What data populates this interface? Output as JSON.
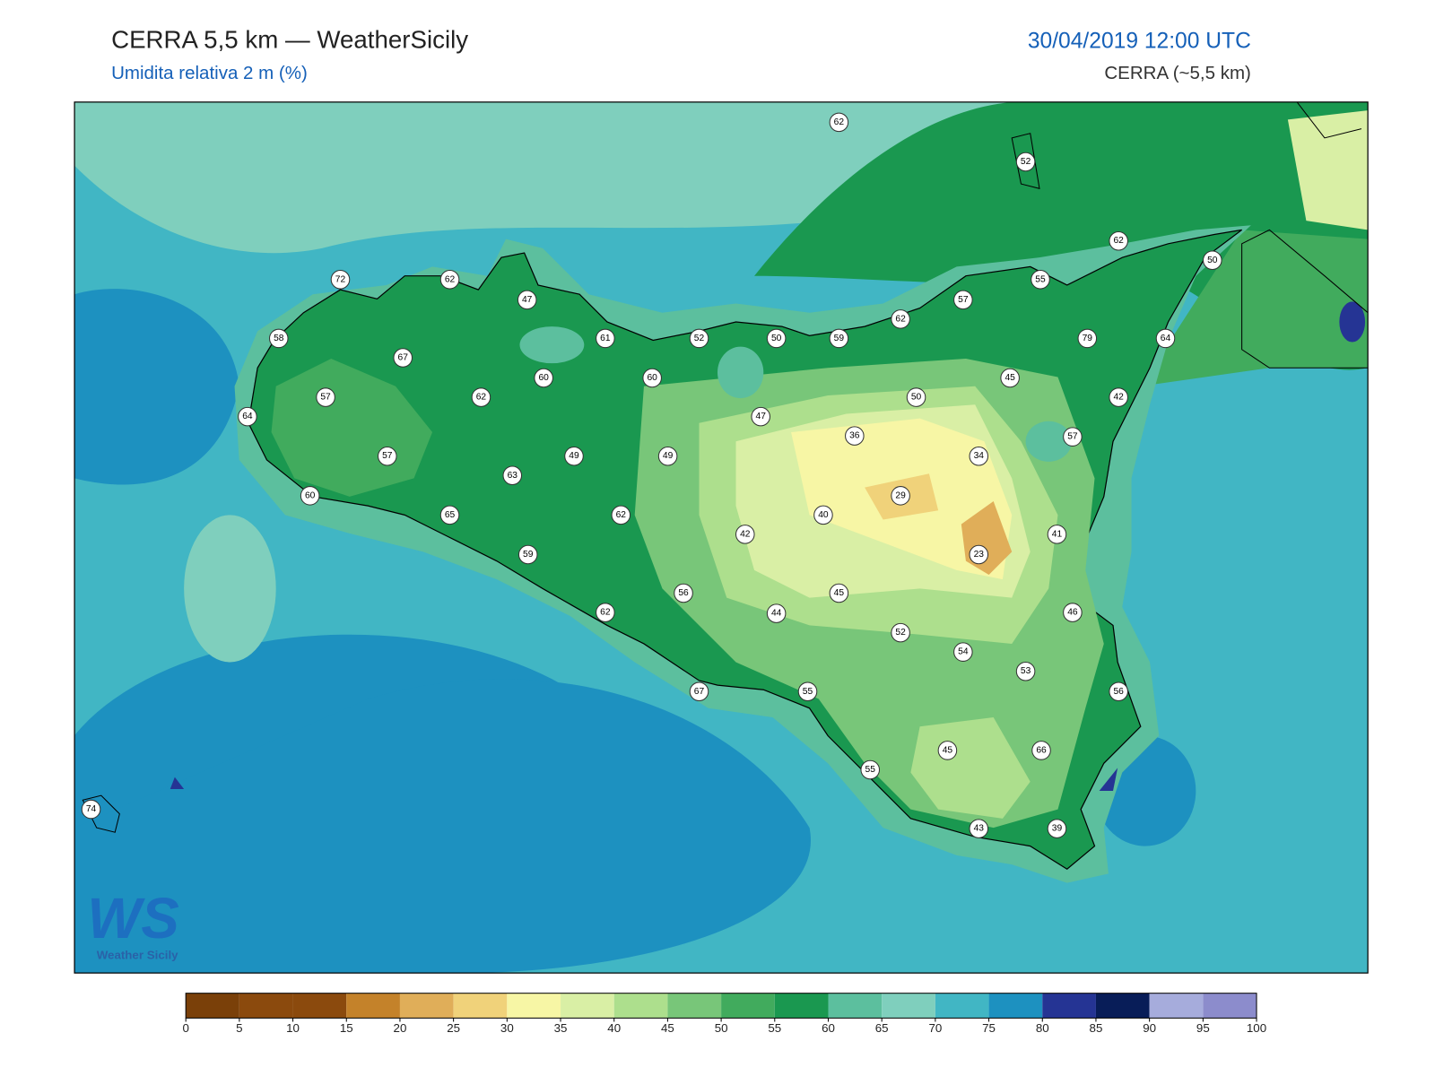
{
  "header": {
    "title": "CERRA 5,5 km — WeatherSicily",
    "subtitle": "Umidita relativa 2 m (%)",
    "date": "30/04/2019 12:00 UTC",
    "model": "CERRA (~5,5 km)"
  },
  "logo": {
    "mark": "WS",
    "text": "Weather Sicily"
  },
  "stations": [
    62,
    52,
    62,
    50,
    72,
    62,
    47,
    55,
    57,
    62,
    58,
    67,
    61,
    52,
    50,
    59,
    79,
    64,
    60,
    60,
    45,
    57,
    64,
    62,
    50,
    42,
    47,
    36,
    57,
    57,
    49,
    49,
    34,
    63,
    60,
    29,
    65,
    62,
    40,
    42,
    41,
    59,
    23,
    45,
    56,
    62,
    44,
    46,
    52,
    54,
    53,
    67,
    55,
    56,
    45,
    66,
    55,
    74,
    43,
    39
  ],
  "colorbar": {
    "ticks": [
      0,
      5,
      10,
      15,
      20,
      25,
      30,
      35,
      40,
      45,
      50,
      55,
      60,
      65,
      70,
      75,
      80,
      85,
      90,
      95,
      100
    ],
    "colors": [
      "#7a4009",
      "#8b4a0d",
      "#8b4a0d",
      "#c4822a",
      "#e0ae59",
      "#f0d27a",
      "#f7f6a5",
      "#d9efa5",
      "#addf8d",
      "#78c679",
      "#41ab5d",
      "#1a9850",
      "#5cbf9e",
      "#7fcfbd",
      "#41b6c4",
      "#1d91c0",
      "#253494",
      "#081d58",
      "#a6acdc",
      "#8c8ccc"
    ]
  }
}
